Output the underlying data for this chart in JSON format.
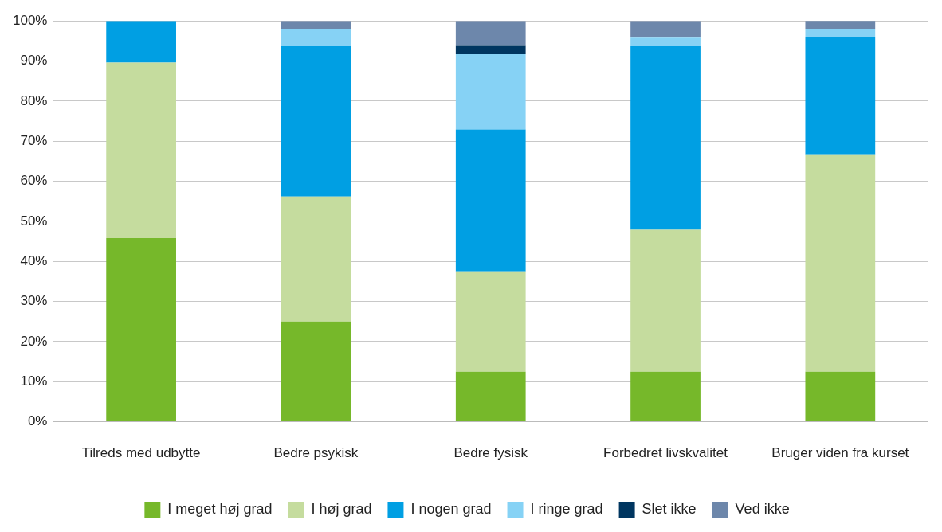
{
  "chart_data": {
    "type": "bar",
    "stacked": true,
    "categories": [
      "Tilreds med udbytte",
      "Bedre psykisk",
      "Bedre fysisk",
      "Forbedret livskvalitet",
      "Bruger viden fra kurset"
    ],
    "series": [
      {
        "name": "I meget høj grad",
        "color": "#76b82a",
        "values": [
          45.8,
          25,
          12.5,
          12.5,
          12.5
        ]
      },
      {
        "name": "I høj grad",
        "color": "#c5dc9e",
        "values": [
          43.8,
          31.2,
          25,
          35.4,
          54.2
        ]
      },
      {
        "name": "I nogen grad",
        "color": "#009fe3",
        "values": [
          10.4,
          37.5,
          35.4,
          45.8,
          29.2
        ]
      },
      {
        "name": "I ringe grad",
        "color": "#86d2f5",
        "values": [
          0,
          4.2,
          18.8,
          2.1,
          2.1
        ]
      },
      {
        "name": "Slet ikke",
        "color": "#003660",
        "values": [
          0,
          0,
          2.1,
          0,
          0
        ]
      },
      {
        "name": "Ved ikke",
        "color": "#6d87ab",
        "values": [
          0,
          2.1,
          6.2,
          4.2,
          2.1
        ]
      }
    ],
    "ylim": [
      0,
      100
    ],
    "yticks": [
      {
        "value": 0,
        "label": "0%"
      },
      {
        "value": 10,
        "label": "10%"
      },
      {
        "value": 20,
        "label": "20%"
      },
      {
        "value": 30,
        "label": "30%"
      },
      {
        "value": 40,
        "label": "40%"
      },
      {
        "value": 50,
        "label": "50%"
      },
      {
        "value": 60,
        "label": "60%"
      },
      {
        "value": 70,
        "label": "70%"
      },
      {
        "value": 80,
        "label": "80%"
      },
      {
        "value": 90,
        "label": "90%"
      },
      {
        "value": 100,
        "label": "100%"
      }
    ],
    "grid": "y",
    "legend": "bottom"
  }
}
